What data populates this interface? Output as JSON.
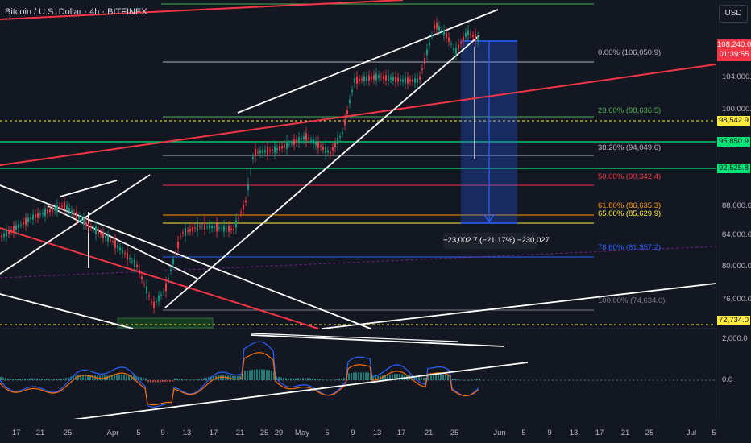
{
  "header": {
    "title": "Bitcoin / U.S. Dollar · 4h · BITFINEX"
  },
  "toolbar": {
    "currency_label": "USD"
  },
  "price_axis": {
    "labels": [
      "104,000.0",
      "100,000.0",
      "88,000.0",
      "84,000.0",
      "80,000.0",
      "76,000.0"
    ],
    "oscillator_labels": [
      "2,000.0",
      "0.0"
    ]
  },
  "price_tags": {
    "current_price": "108,240.0",
    "countdown": "01:39:55",
    "tag_98542": "98,542.9",
    "tag_95850": "95,850.9",
    "tag_92525": "92,525.8",
    "tag_72734": "72,734.0"
  },
  "fib_levels": [
    {
      "label": "0.00% (106,050.9)",
      "color": "#b2b5be"
    },
    {
      "label": "23.60% (98,636.5)",
      "color": "#4caf50"
    },
    {
      "label": "38.20% (94,049.6)",
      "color": "#b2b5be"
    },
    {
      "label": "50.00% (90,342.4)",
      "color": "#f23645"
    },
    {
      "label": "61.80% (86,635.3)",
      "color": "#ff9800"
    },
    {
      "label": "65.00% (85,629.9)",
      "color": "#ffeb3b"
    },
    {
      "label": "78.60% (81,357.2)",
      "color": "#2962ff"
    },
    {
      "label": "100.00% (74,634.0)",
      "color": "#787b86"
    }
  ],
  "measure": {
    "label": "−23,002.7 (−21.17%) −230,027"
  },
  "time_axis": {
    "labels": [
      "17",
      "21",
      "25",
      "Apr",
      "5",
      "9",
      "13",
      "17",
      "21",
      "25",
      "29",
      "May",
      "5",
      "9",
      "13",
      "17",
      "21",
      "25",
      "Jun",
      "5",
      "9",
      "13",
      "17",
      "21",
      "25",
      "Jul",
      "5"
    ]
  },
  "colors": {
    "background": "#131722",
    "bull": "#089981",
    "bear": "#f23645",
    "accent_blue": "#2962ff",
    "macd": "#2962ff",
    "signal": "#ff6d00"
  }
}
